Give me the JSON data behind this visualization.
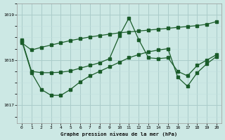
{
  "title": "Graphe pression niveau de la mer (hPa)",
  "bg_color": "#cce8e4",
  "grid_major_color": "#aaccca",
  "grid_minor_color": "#c0dedd",
  "line_color": "#1a5c2a",
  "xlim": [
    -0.5,
    20.5
  ],
  "ylim": [
    1016.6,
    1019.25
  ],
  "yticks": [
    1017,
    1018,
    1019
  ],
  "xticks": [
    0,
    1,
    2,
    3,
    4,
    5,
    6,
    7,
    8,
    9,
    10,
    11,
    12,
    13,
    14,
    15,
    16,
    17,
    18,
    19,
    20
  ],
  "s1_x": [
    0,
    1,
    2,
    3,
    4,
    5,
    6,
    7,
    8,
    9,
    10,
    11,
    12,
    13,
    14,
    15,
    16,
    17,
    18,
    19,
    20
  ],
  "s1_y": [
    1018.38,
    1018.22,
    1018.28,
    1018.33,
    1018.38,
    1018.43,
    1018.47,
    1018.51,
    1018.54,
    1018.57,
    1018.6,
    1018.62,
    1018.64,
    1018.66,
    1018.68,
    1018.7,
    1018.72,
    1018.74,
    1018.76,
    1018.79,
    1018.85
  ],
  "s2_x": [
    0,
    1,
    2,
    3,
    4,
    5,
    6,
    7,
    8,
    9,
    10,
    11,
    12,
    13,
    14,
    15,
    16,
    17,
    18,
    19,
    20
  ],
  "s2_y": [
    1018.45,
    1017.75,
    1017.72,
    1017.72,
    1017.73,
    1017.76,
    1017.82,
    1017.88,
    1017.94,
    1018.03,
    1018.53,
    1018.93,
    1018.45,
    1018.05,
    1018.03,
    1018.05,
    1017.75,
    1017.65,
    1017.88,
    1018.0,
    1018.12
  ],
  "s3_x": [
    0,
    1,
    2,
    3,
    4,
    5,
    6,
    7,
    8,
    9,
    10,
    11,
    12,
    13,
    14,
    15,
    16,
    17,
    18,
    19,
    20
  ],
  "s3_y": [
    1018.42,
    1017.72,
    1017.35,
    1017.22,
    1017.22,
    1017.35,
    1017.52,
    1017.65,
    1017.75,
    1017.85,
    1017.95,
    1018.05,
    1018.12,
    1018.18,
    1018.22,
    1018.25,
    1017.62,
    1017.42,
    1017.72,
    1017.92,
    1018.08
  ]
}
